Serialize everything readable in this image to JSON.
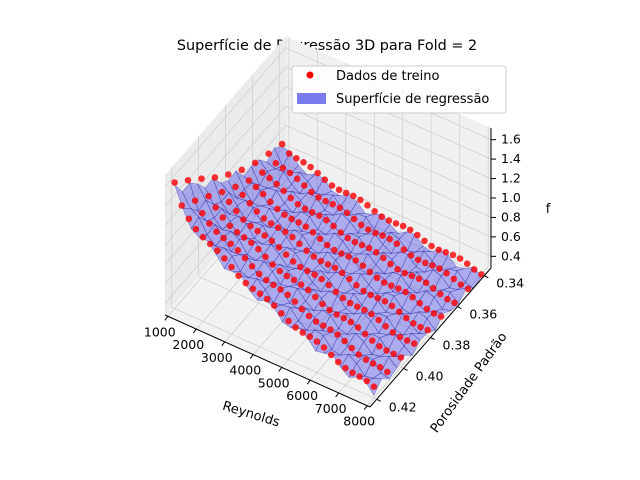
{
  "chart_data": {
    "type": "scatter",
    "projection": "3d",
    "title": "Superfície de Regressão 3D para Fold = 2",
    "xlabel": "Reynolds",
    "ylabel": "Porosidade Padrão",
    "zlabel": "f",
    "xlim": [
      900,
      8100
    ],
    "ylim": [
      0.335,
      0.425
    ],
    "zlim": [
      0.28,
      1.72
    ],
    "xticks": [
      "1000",
      "2000",
      "3000",
      "4000",
      "5000",
      "6000",
      "7000",
      "8000"
    ],
    "yticks": [
      "0.34",
      "0.36",
      "0.38",
      "0.40",
      "0.42"
    ],
    "zticks": [
      "0.4",
      "0.6",
      "0.8",
      "1.0",
      "1.2",
      "1.4",
      "1.6"
    ],
    "legend": {
      "position": "top-right",
      "entries": [
        {
          "label": "Dados de treino",
          "marker": "dot",
          "color": "#ff0000"
        },
        {
          "label": "Superfície de regressão",
          "marker": "patch",
          "color": "#7b7bf0"
        }
      ]
    },
    "series": [
      {
        "name": "Dados de treino",
        "kind": "scatter",
        "color": "#ff0000",
        "porosity_levels": [
          0.34,
          0.35,
          0.36,
          0.37,
          0.38,
          0.39,
          0.4,
          0.41,
          0.42
        ],
        "reynolds_range": [
          1000,
          8000
        ],
        "f_at_min_reynolds": [
          0.72,
          0.78,
          0.84,
          0.92,
          1.02,
          1.14,
          1.28,
          1.42,
          1.56
        ],
        "f_at_max_reynolds": [
          0.3,
          0.31,
          0.32,
          0.33,
          0.34,
          0.35,
          0.36,
          0.37,
          0.38
        ]
      },
      {
        "name": "Superfície de regressão",
        "kind": "surface",
        "color": "#5555e8",
        "edge_color": "#00008b"
      }
    ]
  }
}
